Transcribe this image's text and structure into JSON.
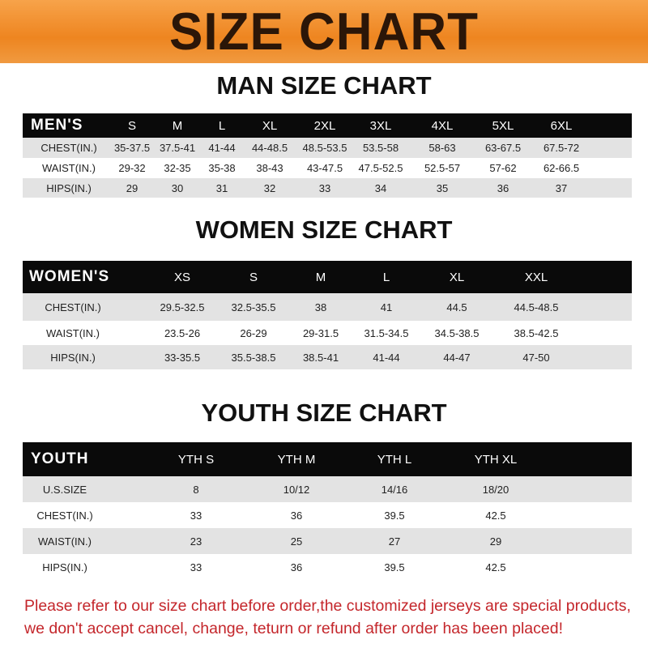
{
  "title": "SIZE CHART",
  "colors": {
    "banner": "#ee8520",
    "title_text": "#2b1608",
    "header_row": "#0a0a0a",
    "stripe": "#e3e3e3",
    "notice": "#c4262b"
  },
  "men": {
    "heading": "MAN SIZE CHART",
    "header": [
      "MEN'S",
      "S",
      "M",
      "L",
      "XL",
      "2XL",
      "3XL",
      "4XL",
      "5XL",
      "6XL"
    ],
    "rows": [
      [
        "CHEST(IN.)",
        "35-37.5",
        "37.5-41",
        "41-44",
        "44-48.5",
        "48.5-53.5",
        "53.5-58",
        "58-63",
        "63-67.5",
        "67.5-72"
      ],
      [
        "WAIST(IN.)",
        "29-32",
        "32-35",
        "35-38",
        "38-43",
        "43-47.5",
        "47.5-52.5",
        "52.5-57",
        "57-62",
        "62-66.5"
      ],
      [
        "HIPS(IN.)",
        "29",
        "30",
        "31",
        "32",
        "33",
        "34",
        "35",
        "36",
        "37"
      ]
    ]
  },
  "women": {
    "heading": "WOMEN SIZE CHART",
    "header": [
      "WOMEN'S",
      "XS",
      "S",
      "M",
      "L",
      "XL",
      "XXL"
    ],
    "rows": [
      [
        "CHEST(IN.)",
        "29.5-32.5",
        "32.5-35.5",
        "38",
        "41",
        "44.5",
        "44.5-48.5"
      ],
      [
        "WAIST(IN.)",
        "23.5-26",
        "26-29",
        "29-31.5",
        "31.5-34.5",
        "34.5-38.5",
        "38.5-42.5"
      ],
      [
        "HIPS(IN.)",
        "33-35.5",
        "35.5-38.5",
        "38.5-41",
        "41-44",
        "44-47",
        "47-50"
      ]
    ]
  },
  "youth": {
    "heading": "YOUTH SIZE CHART",
    "header": [
      "YOUTH",
      "YTH S",
      "YTH M",
      "YTH L",
      "YTH XL"
    ],
    "rows": [
      [
        "U.S.SIZE",
        "8",
        "10/12",
        "14/16",
        "18/20"
      ],
      [
        "CHEST(IN.)",
        "33",
        "36",
        "39.5",
        "42.5"
      ],
      [
        "WAIST(IN.)",
        "23",
        "25",
        "27",
        "29"
      ],
      [
        "HIPS(IN.)",
        "33",
        "36",
        "39.5",
        "42.5"
      ]
    ]
  },
  "notice": [
    "Please refer to our size chart before order,the customized jerseys are special products,",
    "we don't accept cancel, change, teturn or refund after order has been placed!"
  ]
}
